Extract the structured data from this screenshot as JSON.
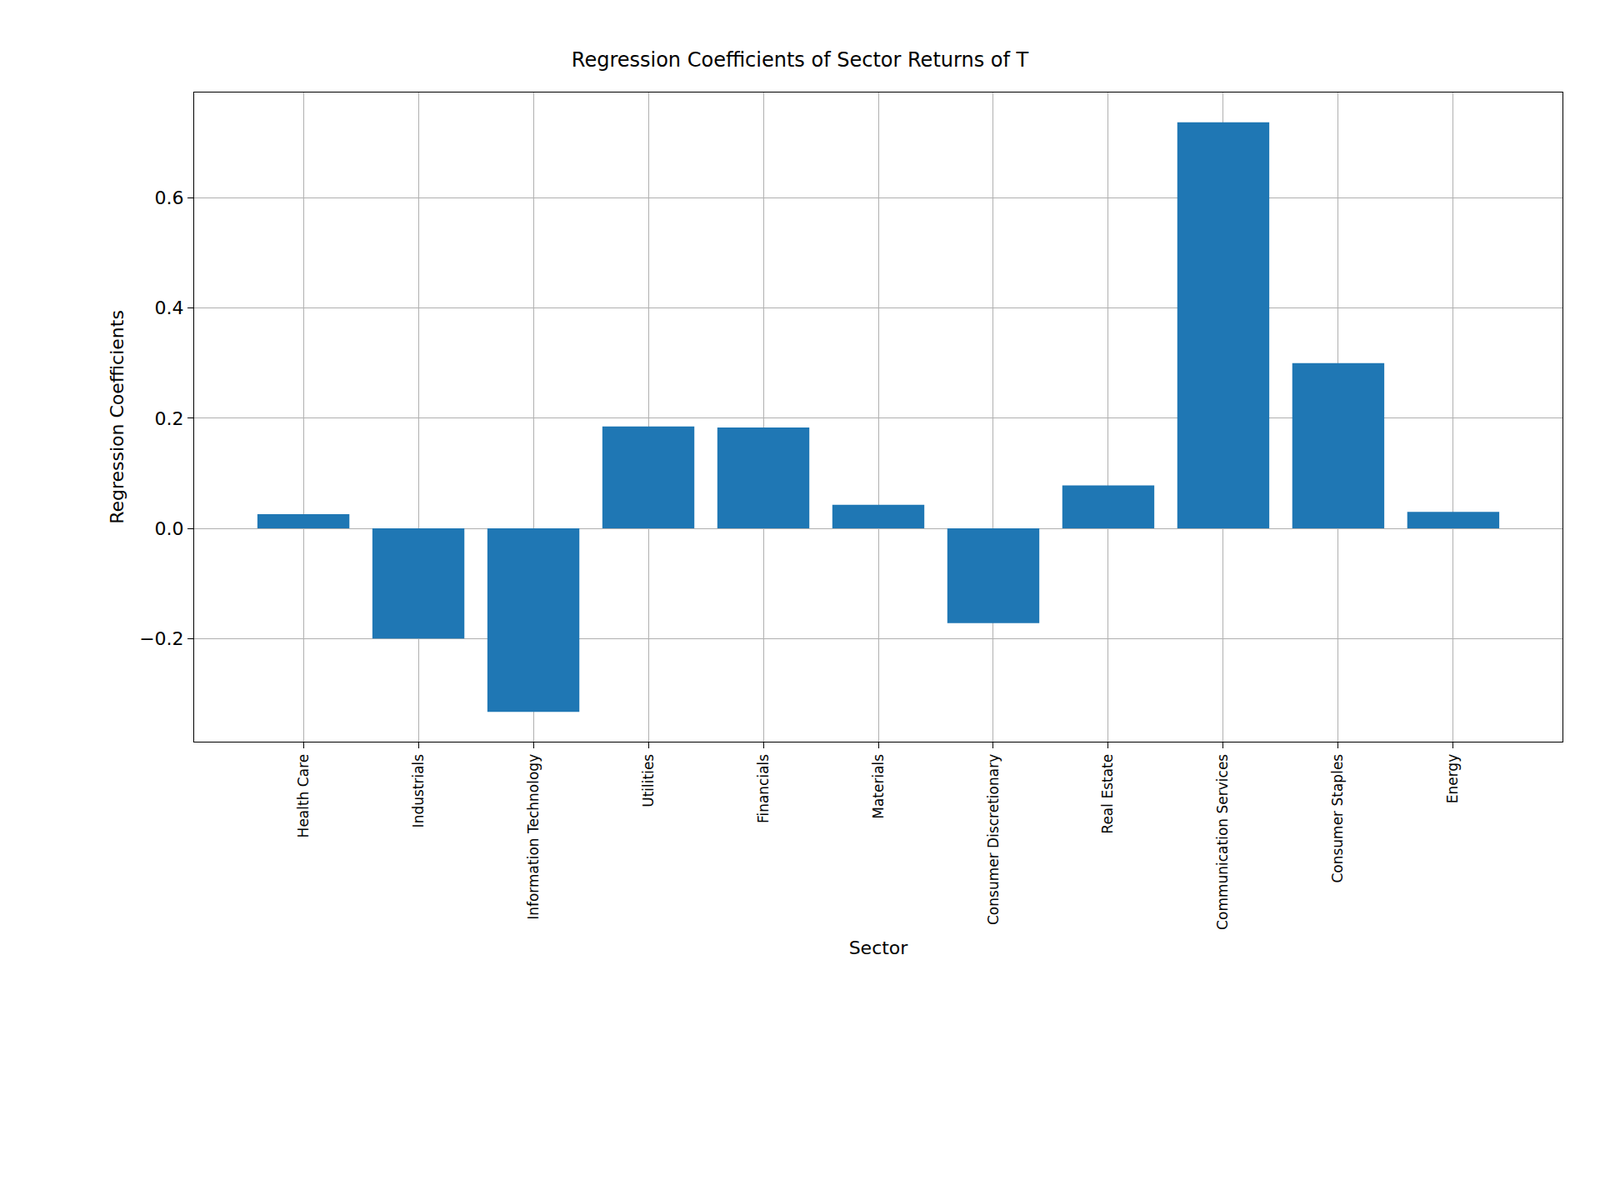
{
  "chart_data": {
    "type": "bar",
    "title": "Regression Coefficients of Sector Returns of T",
    "x_label": "Sector",
    "y_label": "Regression Coefficients",
    "categories": [
      "Health Care",
      "Industrials",
      "Information Technology",
      "Utilities",
      "Financials",
      "Materials",
      "Consumer Discretionary",
      "Real Estate",
      "Communication Services",
      "Consumer Staples",
      "Energy"
    ],
    "values": [
      0.026,
      -0.2,
      -0.333,
      0.185,
      0.183,
      0.043,
      -0.172,
      0.078,
      0.737,
      0.3,
      0.03
    ],
    "color": "#1f77b4",
    "ylim": [
      -0.387,
      0.791
    ],
    "yticks": [
      {
        "value": -0.2,
        "label": "−0.2"
      },
      {
        "value": 0,
        "label": "0.0"
      },
      0.2,
      0.4,
      0.6
    ],
    "grid": true
  }
}
